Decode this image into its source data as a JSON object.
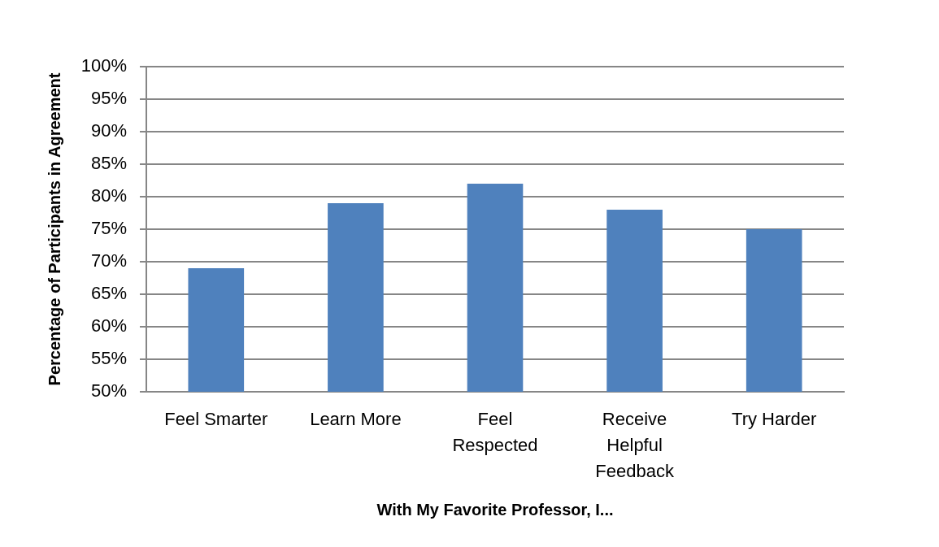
{
  "chart_data": {
    "type": "bar",
    "xlabel": "With My Favorite Professor, I...",
    "ylabel": "Percentage of Participants in Agreement",
    "categories": [
      "Feel Smarter",
      "Learn More",
      "Feel Respected",
      "Receive Helpful Feedback",
      "Try Harder"
    ],
    "values": [
      69,
      79,
      82,
      78,
      75
    ],
    "color": "#4f81bd",
    "ylim": [
      50,
      100
    ],
    "yticks": [
      {
        "value": 50,
        "label": "50%"
      },
      {
        "value": 55,
        "label": "55%"
      },
      {
        "value": 60,
        "label": "60%"
      },
      {
        "value": 65,
        "label": "65%"
      },
      {
        "value": 70,
        "label": "70%"
      },
      {
        "value": 75,
        "label": "75%"
      },
      {
        "value": 80,
        "label": "80%"
      },
      {
        "value": 85,
        "label": "85%"
      },
      {
        "value": 90,
        "label": "90%"
      },
      {
        "value": 95,
        "label": "95%"
      },
      {
        "value": 100,
        "label": "100%"
      }
    ],
    "grid": "y"
  }
}
